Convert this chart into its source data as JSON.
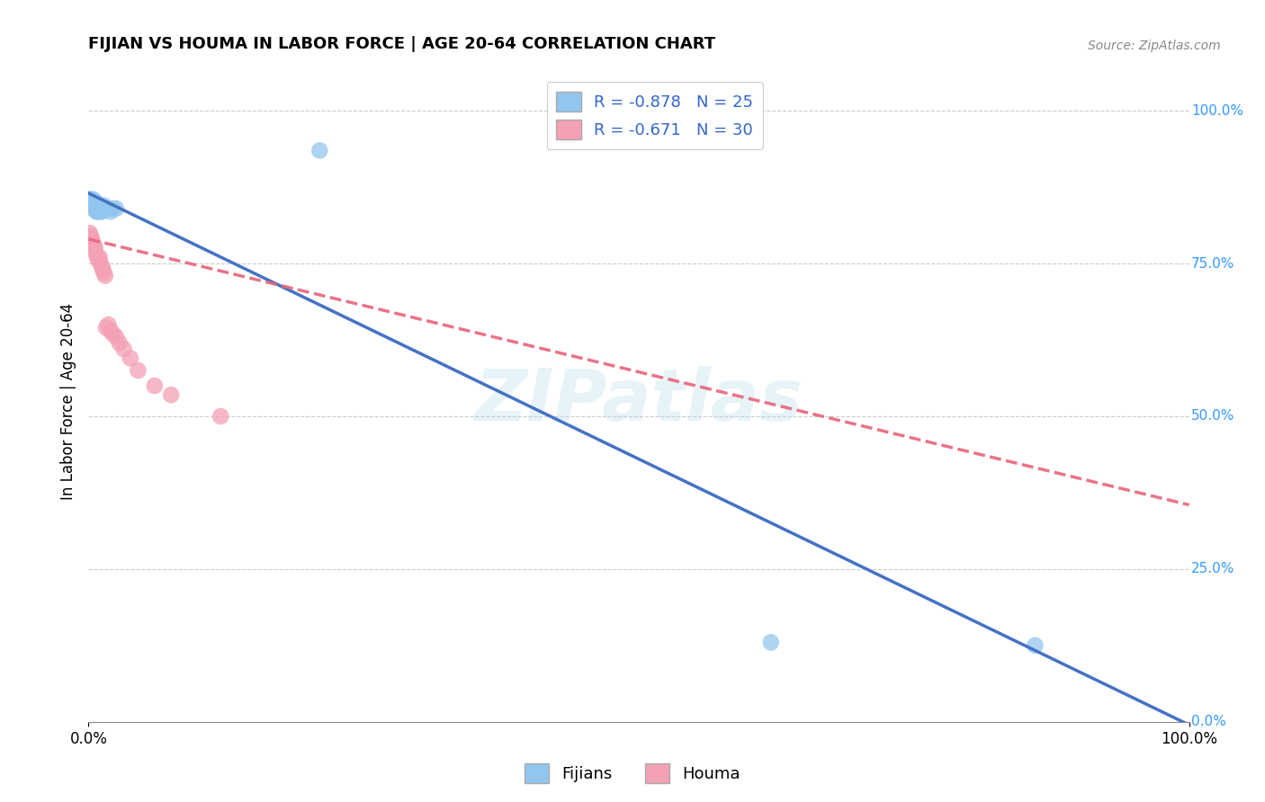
{
  "title": "FIJIAN VS HOUMA IN LABOR FORCE | AGE 20-64 CORRELATION CHART",
  "source": "Source: ZipAtlas.com",
  "ylabel": "In Labor Force | Age 20-64",
  "fijian_R": -0.878,
  "fijian_N": 25,
  "houma_R": -0.671,
  "houma_N": 30,
  "fijian_color": "#93C6EE",
  "houma_color": "#F4A0B5",
  "fijian_line_color": "#4472C4",
  "houma_line_color": "#E8647A",
  "fijian_x": [
    0.001,
    0.002,
    0.003,
    0.003,
    0.004,
    0.004,
    0.005,
    0.005,
    0.006,
    0.007,
    0.007,
    0.008,
    0.009,
    0.01,
    0.011,
    0.012,
    0.014,
    0.016,
    0.018,
    0.02,
    0.022,
    0.025,
    0.21,
    0.62,
    0.86
  ],
  "fijian_y": [
    0.855,
    0.855,
    0.85,
    0.845,
    0.855,
    0.84,
    0.845,
    0.85,
    0.845,
    0.835,
    0.85,
    0.835,
    0.84,
    0.845,
    0.835,
    0.835,
    0.845,
    0.84,
    0.84,
    0.835,
    0.84,
    0.84,
    0.935,
    0.13,
    0.125
  ],
  "houma_x": [
    0.001,
    0.002,
    0.002,
    0.003,
    0.003,
    0.004,
    0.005,
    0.005,
    0.006,
    0.007,
    0.008,
    0.009,
    0.01,
    0.011,
    0.012,
    0.013,
    0.014,
    0.015,
    0.016,
    0.018,
    0.02,
    0.022,
    0.025,
    0.028,
    0.032,
    0.038,
    0.045,
    0.06,
    0.075,
    0.12
  ],
  "houma_y": [
    0.8,
    0.795,
    0.79,
    0.785,
    0.79,
    0.78,
    0.775,
    0.78,
    0.775,
    0.765,
    0.76,
    0.755,
    0.76,
    0.75,
    0.745,
    0.74,
    0.735,
    0.73,
    0.645,
    0.65,
    0.64,
    0.635,
    0.63,
    0.62,
    0.61,
    0.595,
    0.575,
    0.55,
    0.535,
    0.5
  ],
  "xlim": [
    0.0,
    1.0
  ],
  "ylim": [
    0.0,
    1.0
  ],
  "fijian_line_x0": 0.0,
  "fijian_line_y0": 0.865,
  "fijian_line_x1": 1.0,
  "fijian_line_y1": -0.005,
  "houma_line_x0": 0.0,
  "houma_line_y0": 0.79,
  "houma_line_x1": 1.0,
  "houma_line_y1": 0.355,
  "right_yticklabels": [
    "0.0%",
    "25.0%",
    "50.0%",
    "75.0%",
    "100.0%"
  ],
  "right_yticks": [
    0.0,
    0.25,
    0.5,
    0.75,
    1.0
  ],
  "bottom_xticklabels": [
    "0.0%",
    "100.0%"
  ]
}
